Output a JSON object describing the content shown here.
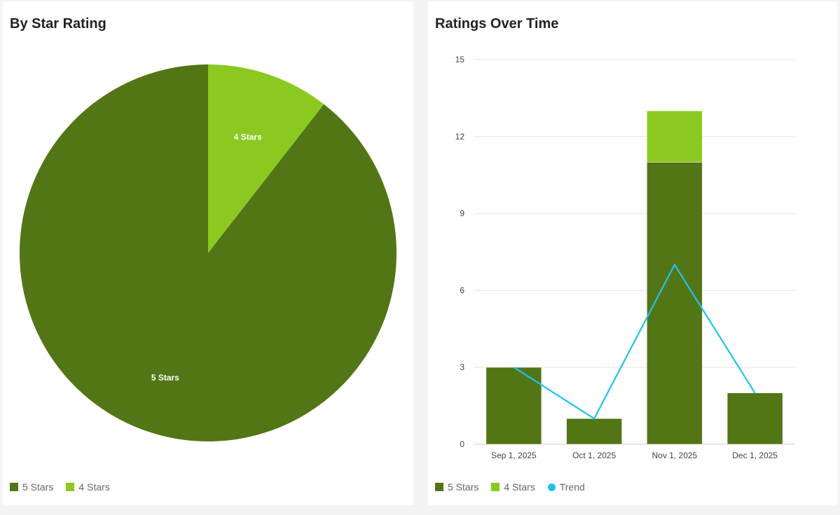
{
  "colors": {
    "five": "#527615",
    "four": "#8bc920",
    "trend": "#1bc3f2"
  },
  "chart_data": [
    {
      "type": "pie",
      "title": "By Star Rating",
      "slices": [
        {
          "label": "5 Stars",
          "value": 17
        },
        {
          "label": "4 Stars",
          "value": 2
        }
      ],
      "legend": [
        "5 Stars",
        "4 Stars"
      ],
      "legend_position": "bottom-left"
    },
    {
      "type": "bar",
      "stacked": true,
      "title": "Ratings Over Time",
      "categories": [
        "Sep 1, 2025",
        "Oct 1, 2025",
        "Nov 1, 2025",
        "Dec 1, 2025"
      ],
      "series": [
        {
          "name": "5 Stars",
          "values": [
            3,
            1,
            11,
            2
          ]
        },
        {
          "name": "4 Stars",
          "values": [
            0,
            0,
            2,
            0
          ]
        },
        {
          "name": "Trend",
          "type": "line",
          "values": [
            3,
            1,
            7,
            2
          ]
        }
      ],
      "ylim": [
        0,
        15
      ],
      "yticks": [
        "0",
        "3",
        "6",
        "9",
        "12",
        "15"
      ],
      "grid": true,
      "legend_position": "bottom-left"
    }
  ]
}
